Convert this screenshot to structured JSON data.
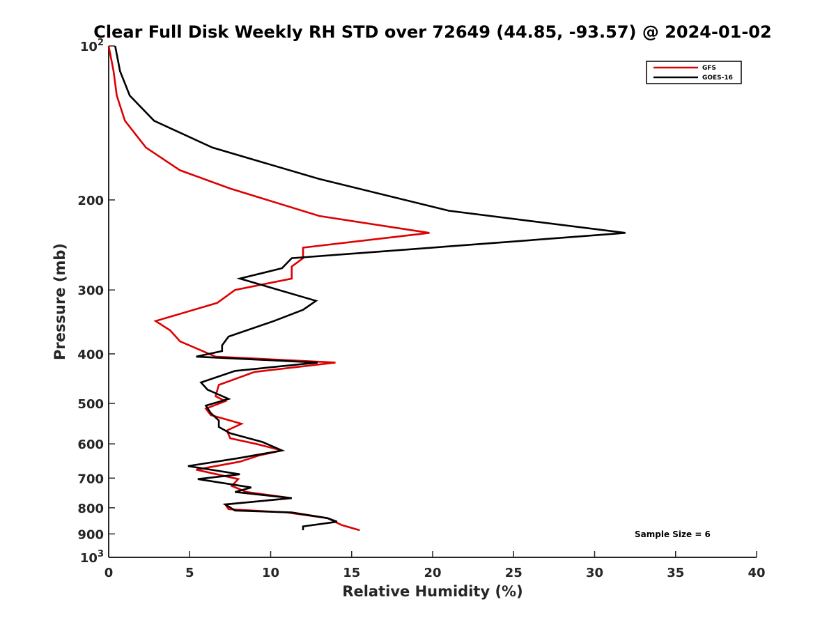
{
  "chart_data": {
    "type": "line",
    "title": "Clear Full Disk Weekly RH STD over 72649 (44.85, -93.57) @ 2024-01-02",
    "xlabel": "Relative Humidity (%)",
    "ylabel": "Pressure (mb)",
    "xlim": [
      0,
      40
    ],
    "ylim": [
      100,
      1000
    ],
    "y_scale": "log",
    "y_reversed": true,
    "x_ticks": [
      0,
      5,
      10,
      15,
      20,
      25,
      30,
      35,
      40
    ],
    "x_tick_labels": [
      "0",
      "5",
      "10",
      "15",
      "20",
      "25",
      "30",
      "35",
      "40"
    ],
    "y_ticks": [
      100,
      200,
      300,
      400,
      500,
      600,
      700,
      800,
      900,
      1000
    ],
    "y_tick_labels": [
      {
        "base": "10",
        "exp": "2"
      },
      {
        "base": "200",
        "exp": ""
      },
      {
        "base": "300",
        "exp": ""
      },
      {
        "base": "400",
        "exp": ""
      },
      {
        "base": "500",
        "exp": ""
      },
      {
        "base": "600",
        "exp": ""
      },
      {
        "base": "700",
        "exp": ""
      },
      {
        "base": "800",
        "exp": ""
      },
      {
        "base": "900",
        "exp": ""
      },
      {
        "base": "10",
        "exp": "3"
      }
    ],
    "grid": false,
    "legend_position": "top-right",
    "annotation": "Sample Size = 6",
    "series": [
      {
        "name": "GFS",
        "color": "#dd0000",
        "points": [
          [
            0.0,
            100
          ],
          [
            0.3,
            112
          ],
          [
            0.5,
            125
          ],
          [
            1.0,
            140
          ],
          [
            2.3,
            158
          ],
          [
            4.4,
            175
          ],
          [
            7.5,
            190
          ],
          [
            13.0,
            215
          ],
          [
            19.8,
            232
          ],
          [
            12.0,
            248
          ],
          [
            12.0,
            260
          ],
          [
            11.3,
            270
          ],
          [
            11.3,
            285
          ],
          [
            7.8,
            300
          ],
          [
            6.7,
            318
          ],
          [
            2.9,
            345
          ],
          [
            3.8,
            360
          ],
          [
            4.4,
            378
          ],
          [
            6.6,
            405
          ],
          [
            14.0,
            416
          ],
          [
            9.0,
            434
          ],
          [
            6.8,
            460
          ],
          [
            6.6,
            484
          ],
          [
            7.2,
            495
          ],
          [
            6.0,
            512
          ],
          [
            6.3,
            527
          ],
          [
            8.2,
            548
          ],
          [
            7.3,
            565
          ],
          [
            7.5,
            585
          ],
          [
            9.1,
            600
          ],
          [
            10.7,
            618
          ],
          [
            9.3,
            632
          ],
          [
            8.1,
            650
          ],
          [
            5.4,
            674
          ],
          [
            8.0,
            703
          ],
          [
            7.6,
            725
          ],
          [
            8.5,
            745
          ],
          [
            11.3,
            766
          ],
          [
            7.2,
            788
          ],
          [
            7.4,
            805
          ],
          [
            11.0,
            817
          ],
          [
            13.5,
            838
          ],
          [
            14.4,
            865
          ],
          [
            15.5,
            885
          ]
        ]
      },
      {
        "name": "GOES-16",
        "color": "#000000",
        "points": [
          [
            0.4,
            100
          ],
          [
            0.7,
            112
          ],
          [
            1.3,
            125
          ],
          [
            2.8,
            140
          ],
          [
            6.4,
            158
          ],
          [
            13.0,
            182
          ],
          [
            21.0,
            210
          ],
          [
            31.9,
            232
          ],
          [
            24.4,
            242
          ],
          [
            11.3,
            260
          ],
          [
            10.7,
            272
          ],
          [
            8.1,
            285
          ],
          [
            12.8,
            315
          ],
          [
            12.0,
            328
          ],
          [
            10.2,
            345
          ],
          [
            7.4,
            370
          ],
          [
            7.0,
            385
          ],
          [
            7.0,
            395
          ],
          [
            5.4,
            405
          ],
          [
            12.9,
            416
          ],
          [
            7.8,
            432
          ],
          [
            5.7,
            455
          ],
          [
            6.1,
            470
          ],
          [
            7.4,
            490
          ],
          [
            6.0,
            505
          ],
          [
            6.3,
            522
          ],
          [
            6.8,
            540
          ],
          [
            6.8,
            556
          ],
          [
            7.5,
            572
          ],
          [
            9.5,
            595
          ],
          [
            10.7,
            618
          ],
          [
            8.0,
            640
          ],
          [
            4.9,
            663
          ],
          [
            8.1,
            688
          ],
          [
            5.5,
            703
          ],
          [
            8.8,
            730
          ],
          [
            7.8,
            745
          ],
          [
            11.3,
            766
          ],
          [
            7.2,
            788
          ],
          [
            7.8,
            810
          ],
          [
            11.3,
            817
          ],
          [
            13.5,
            838
          ],
          [
            14.1,
            852
          ],
          [
            12.0,
            870
          ],
          [
            12.0,
            885
          ]
        ]
      }
    ]
  }
}
